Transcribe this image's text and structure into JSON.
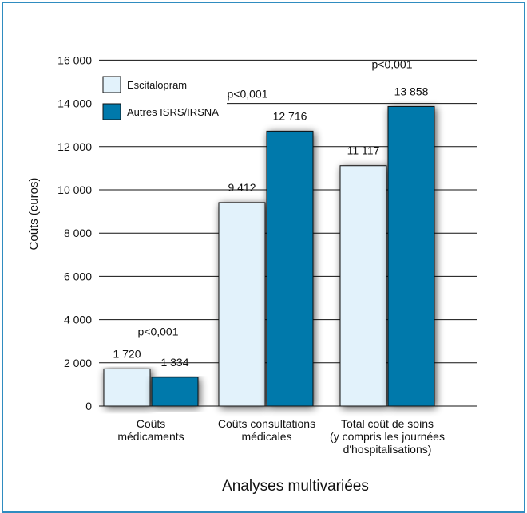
{
  "chart_data": {
    "type": "bar",
    "ylabel": "Coûts (euros)",
    "xtitle": "Analyses multivariées",
    "ylim": [
      0,
      16000
    ],
    "yticks": [
      0,
      2000,
      4000,
      6000,
      8000,
      10000,
      12000,
      14000,
      16000
    ],
    "ytick_labels": [
      "0",
      "2 000",
      "4 000",
      "6 000",
      "8 000",
      "10 000",
      "12 000",
      "14 000",
      "16 000"
    ],
    "categories": [
      [
        "Coûts",
        "médicaments"
      ],
      [
        "Coûts consultations",
        "médicales"
      ],
      [
        "Total coût de soins",
        "(y compris les journées",
        "d'hospitalisations)"
      ]
    ],
    "series": [
      {
        "name": "Escitalopram",
        "color": "#e2f2fb",
        "values": [
          1720,
          9412,
          11117
        ],
        "labels": [
          "1 720",
          "9 412",
          "11 117"
        ]
      },
      {
        "name": "Autres ISRS/IRSNA",
        "color": "#0079ab",
        "values": [
          1334,
          12716,
          13858
        ],
        "labels": [
          "1 334",
          "12 716",
          "13 858"
        ]
      }
    ],
    "significance": [
      "p<0,001",
      "p<0,001",
      "p<0,001"
    ],
    "legend_position": "top-left",
    "grid": true
  }
}
